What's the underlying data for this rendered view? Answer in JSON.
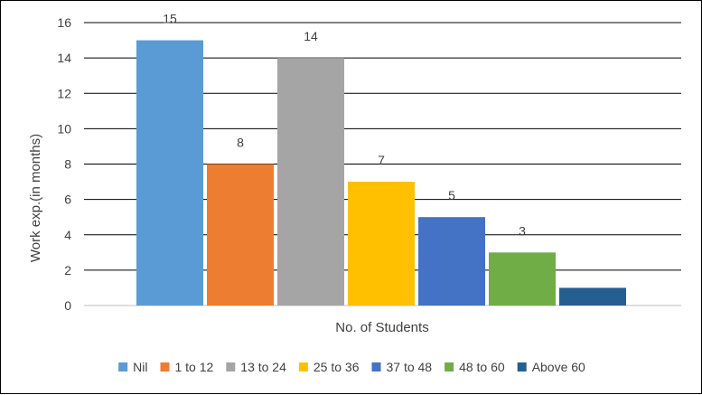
{
  "chart_data": {
    "type": "bar",
    "xlabel": "No. of Students",
    "ylabel": "Work exp.(in months)",
    "ylim": [
      0,
      16
    ],
    "yticks": [
      0,
      2,
      4,
      6,
      8,
      10,
      12,
      14,
      16
    ],
    "grid": true,
    "legend_position": "bottom",
    "series": [
      {
        "name": "Nil",
        "value": 15,
        "label": "15",
        "color": "#5b9bd5"
      },
      {
        "name": "1 to 12",
        "value": 8,
        "label": "8",
        "color": "#ed7d31"
      },
      {
        "name": "13 to 24",
        "value": 14,
        "label": "14",
        "color": "#a5a5a5"
      },
      {
        "name": "25 to 36",
        "value": 7,
        "label": "7",
        "color": "#ffc000"
      },
      {
        "name": "37 to 48",
        "value": 5,
        "label": "5",
        "color": "#4472c4"
      },
      {
        "name": "48 to 60",
        "value": 3,
        "label": "3",
        "color": "#70ad47"
      },
      {
        "name": "Above 60",
        "value": 1,
        "label": "",
        "color": "#255e91"
      }
    ]
  }
}
